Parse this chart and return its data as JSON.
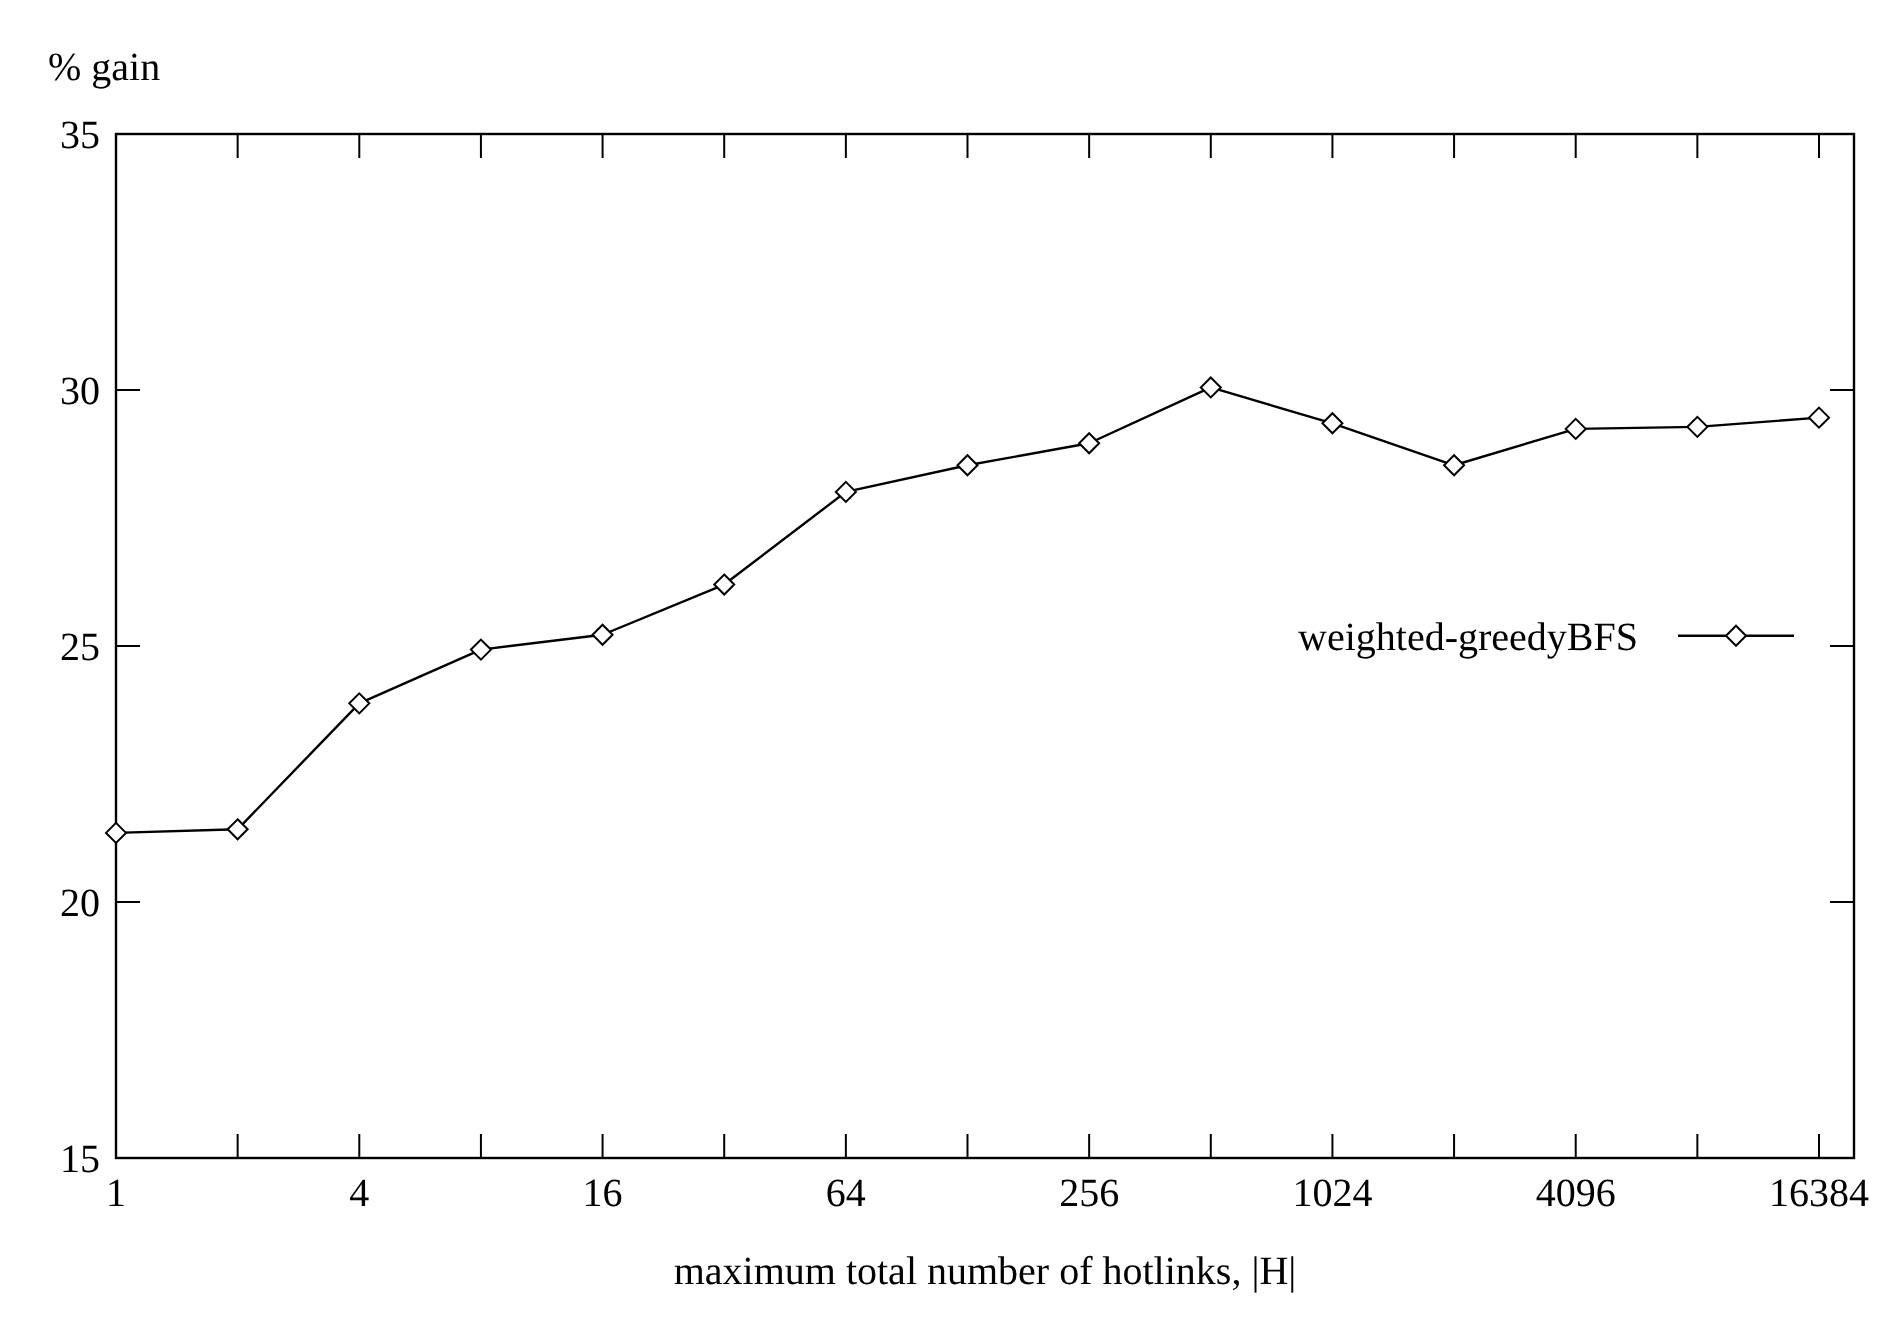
{
  "chart_data": {
    "type": "line",
    "ylabel": "% gain",
    "xlabel": "maximum total number of hotlinks, |H|",
    "log": "x",
    "x": [
      1,
      2,
      4,
      8,
      16,
      32,
      64,
      128,
      256,
      512,
      1024,
      2048,
      4096,
      8192,
      16384
    ],
    "series": [
      {
        "name": "weighted-greedyBFS",
        "color": "#000000",
        "values": [
          21.35,
          21.42,
          23.88,
          24.93,
          25.22,
          26.2,
          28.01,
          28.53,
          28.96,
          30.05,
          29.35,
          28.53,
          29.24,
          29.28,
          29.46
        ]
      }
    ],
    "xlim": [
      1,
      20000
    ],
    "ylim": [
      15,
      35
    ],
    "xticks": [
      1,
      {
        "value": 2,
        "label": null
      },
      4,
      {
        "value": 8,
        "label": null
      },
      16,
      {
        "value": 32,
        "label": null
      },
      64,
      {
        "value": 128,
        "label": null
      },
      256,
      {
        "value": 512,
        "label": null
      },
      1024,
      {
        "value": 2048,
        "label": null
      },
      4096,
      {
        "value": 8192,
        "label": null
      },
      16384
    ],
    "yticks": [
      15,
      20,
      25,
      30,
      35
    ],
    "marker": "diamond",
    "line_style": "solid",
    "grid": false,
    "legend": "right"
  }
}
